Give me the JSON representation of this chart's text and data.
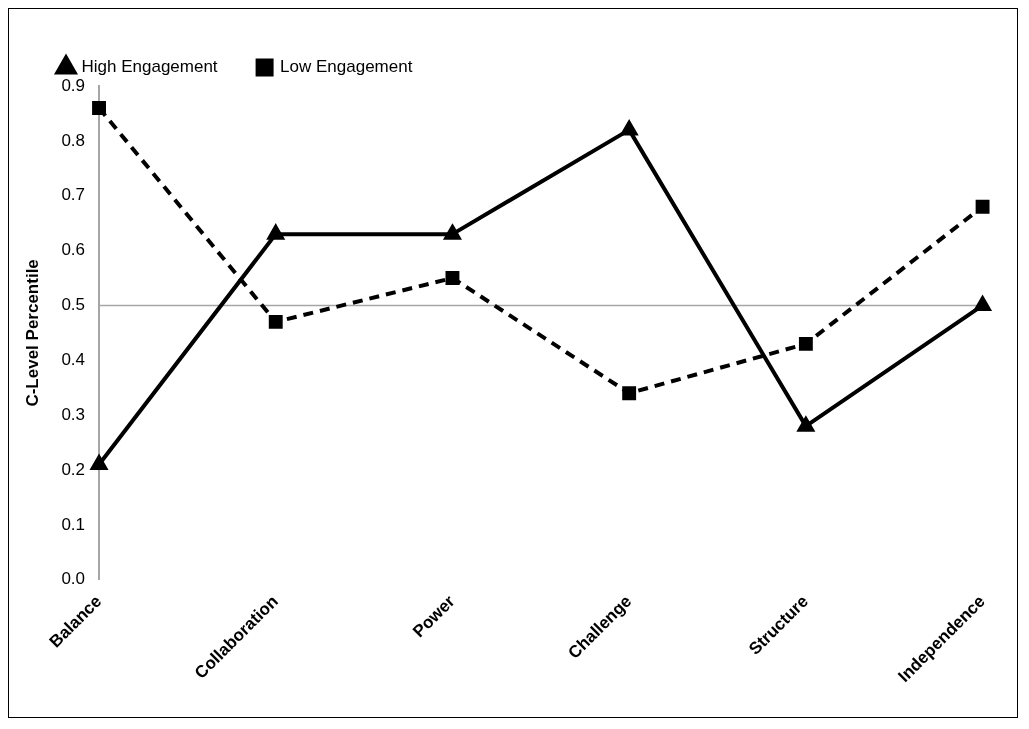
{
  "chart_data": {
    "type": "line",
    "ylabel": "C-Level Percentile",
    "categories": [
      "Balance",
      "Collaboration",
      "Power",
      "Challenge",
      "Structure",
      "Independence"
    ],
    "series": [
      {
        "name": "High Engagement",
        "color": "#000000",
        "marker": "triangle",
        "line_style": "solid",
        "values": [
          0.21,
          0.63,
          0.63,
          0.82,
          0.28,
          0.5
        ]
      },
      {
        "name": "Low Engagement",
        "color": "#000000",
        "marker": "square",
        "line_style": "dashed",
        "values": [
          0.86,
          0.47,
          0.55,
          0.34,
          0.43,
          0.68
        ]
      }
    ],
    "ylim": [
      0,
      0.9
    ],
    "yticks": [
      {
        "value": 0,
        "label": "0.0"
      },
      0.1,
      0.2,
      0.3,
      0.4,
      0.5,
      0.6,
      0.7,
      0.8,
      0.9
    ],
    "ref_lines": [
      {
        "axis": "y",
        "value": 0.5,
        "color": "#a6a6a6"
      }
    ],
    "grid": false,
    "legend": "top left"
  }
}
